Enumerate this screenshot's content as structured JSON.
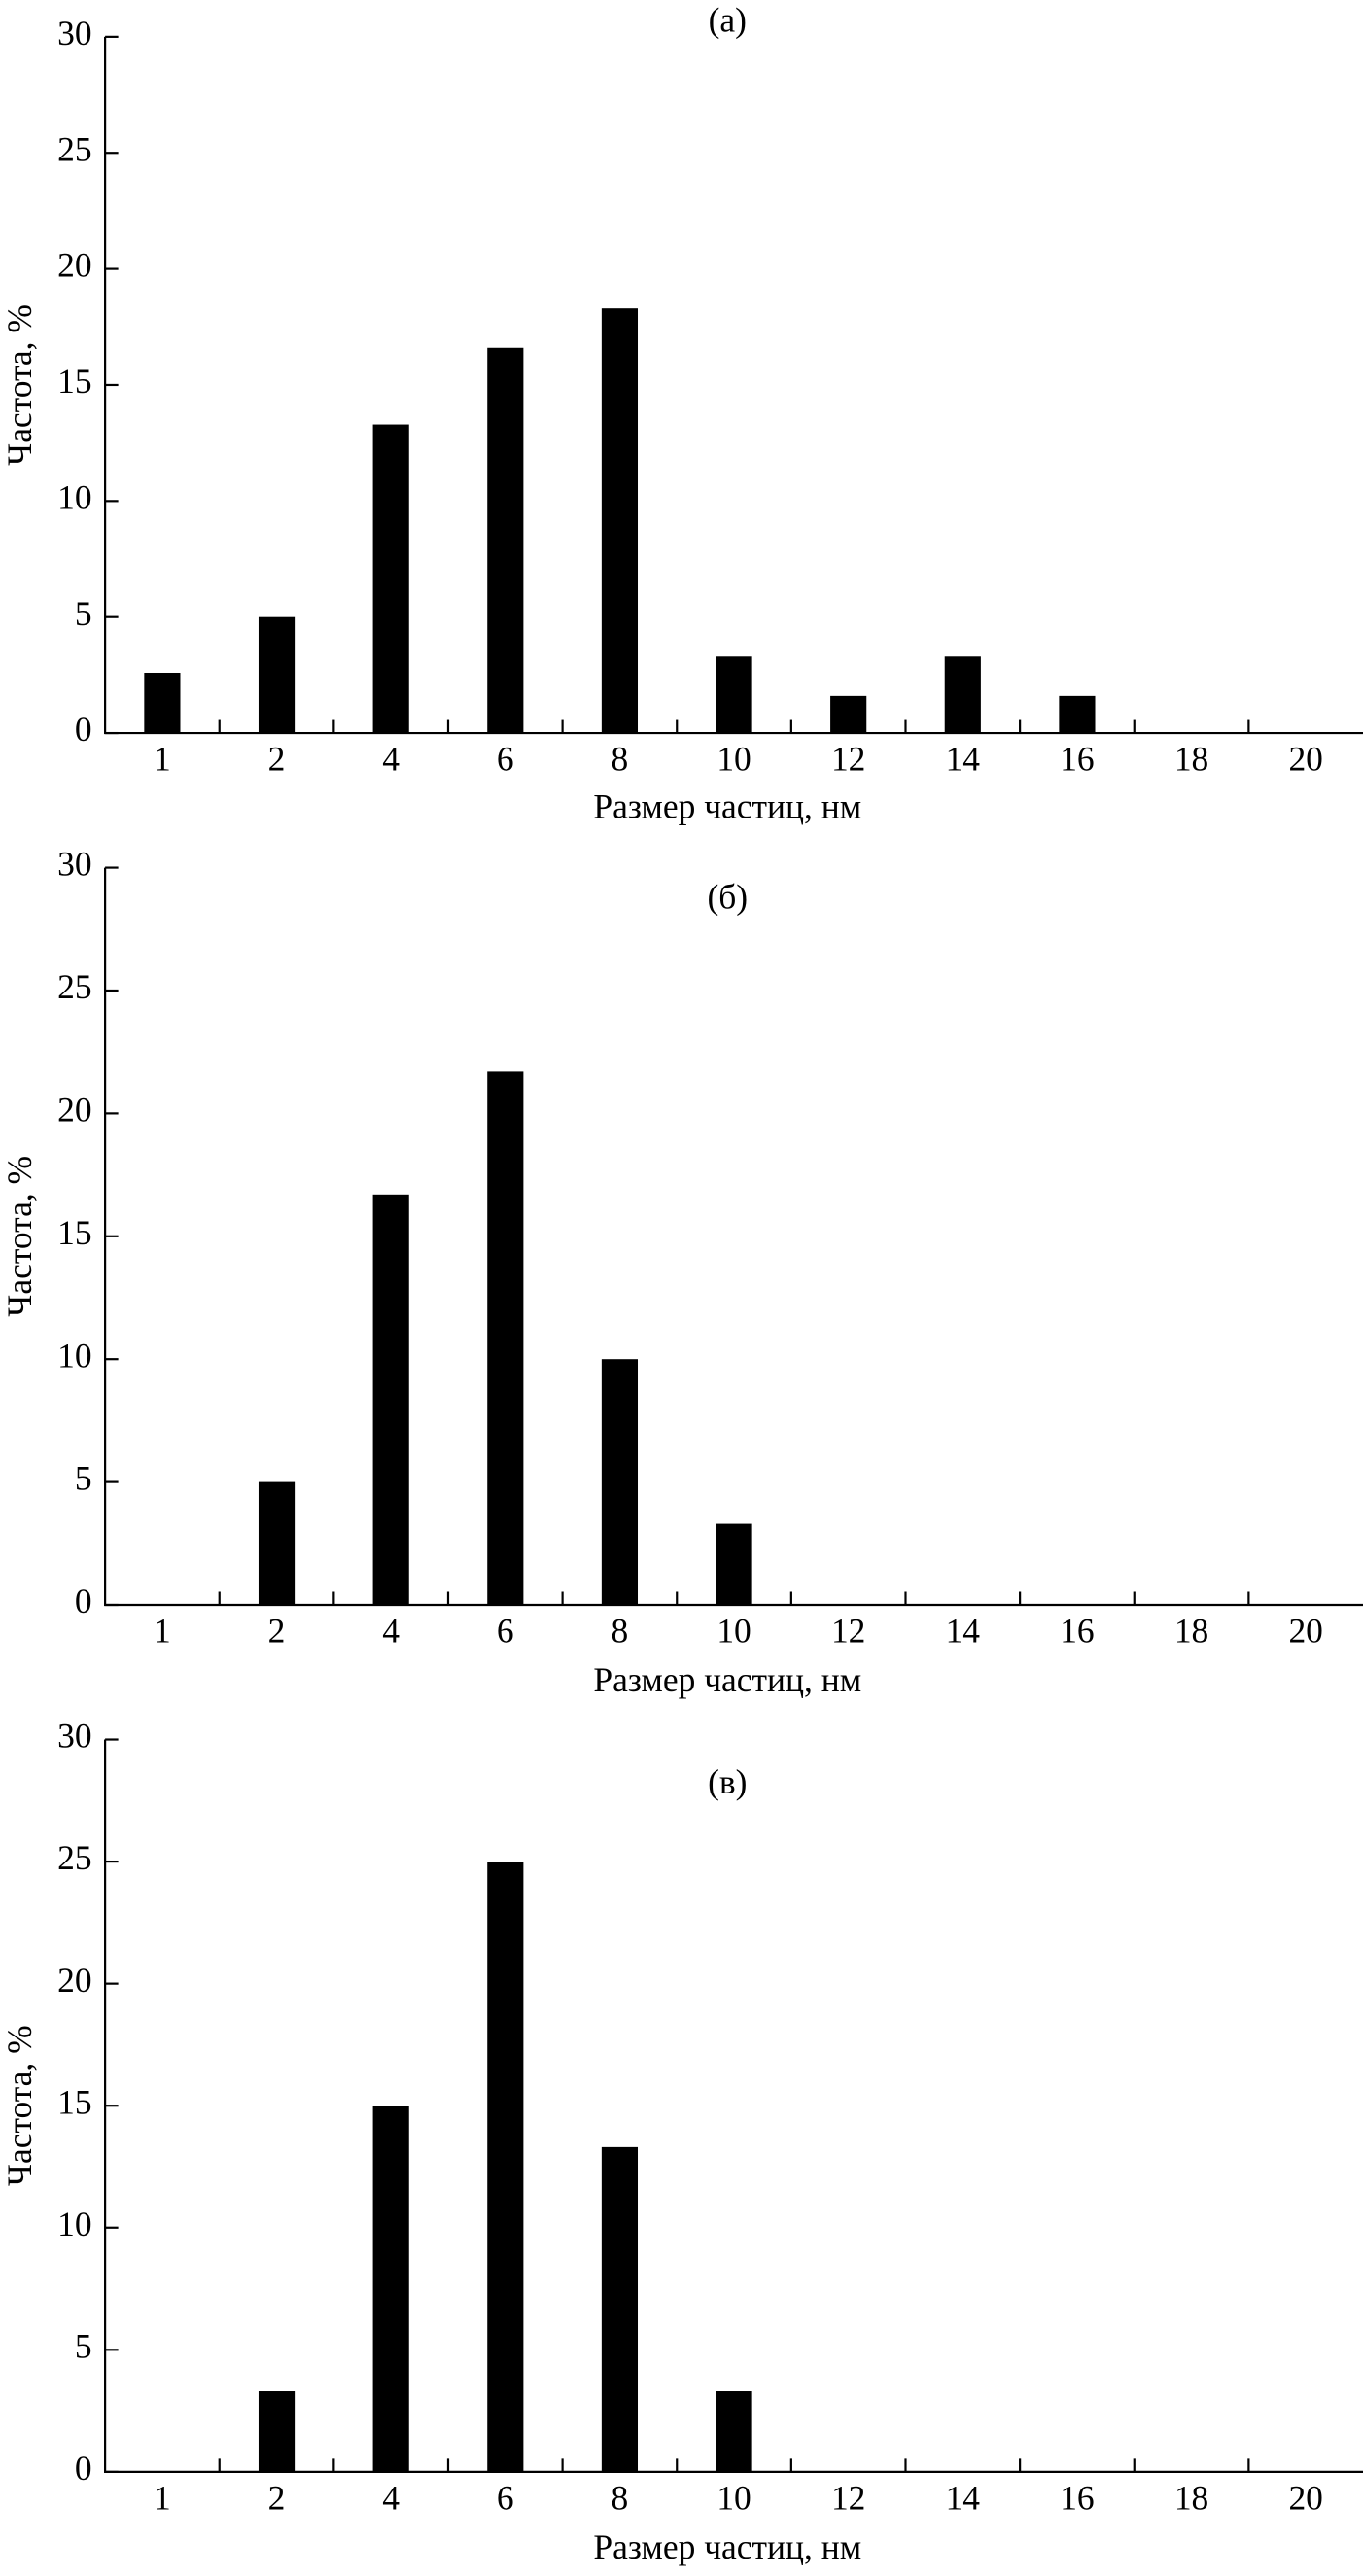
{
  "chart_data": [
    {
      "type": "bar",
      "title": "(а)",
      "xlabel": "Размер частиц, нм",
      "ylabel": "Частота, %",
      "color": "#000000",
      "categories": [
        "1",
        "2",
        "4",
        "6",
        "8",
        "10",
        "12",
        "14",
        "16",
        "18",
        "20"
      ],
      "values": [
        2.6,
        5,
        13.3,
        16.6,
        18.3,
        3.3,
        1.6,
        3.3,
        1.6,
        0,
        0
      ],
      "ylim": [
        0,
        30
      ],
      "yticks": [
        0,
        5,
        10,
        15,
        20,
        25,
        30
      ]
    },
    {
      "type": "bar",
      "title": "(б)",
      "xlabel": "Размер частиц, нм",
      "ylabel": "Частота, %",
      "color": "#000000",
      "categories": [
        "1",
        "2",
        "4",
        "6",
        "8",
        "10",
        "12",
        "14",
        "16",
        "18",
        "20"
      ],
      "values": [
        0,
        5,
        16.7,
        21.7,
        10,
        3.3,
        0,
        0,
        0,
        0,
        0
      ],
      "ylim": [
        0,
        30
      ],
      "yticks": [
        0,
        5,
        10,
        15,
        20,
        25,
        30
      ]
    },
    {
      "type": "bar",
      "title": "(в)",
      "xlabel": "Размер частиц, нм",
      "ylabel": "Частота, %",
      "color": "#000000",
      "categories": [
        "1",
        "2",
        "4",
        "6",
        "8",
        "10",
        "12",
        "14",
        "16",
        "18",
        "20"
      ],
      "values": [
        0,
        3.3,
        15,
        25,
        13.3,
        3.3,
        0,
        0,
        0,
        0,
        0
      ],
      "ylim": [
        0,
        30
      ],
      "yticks": [
        0,
        5,
        10,
        15,
        20,
        25,
        30
      ]
    }
  ]
}
